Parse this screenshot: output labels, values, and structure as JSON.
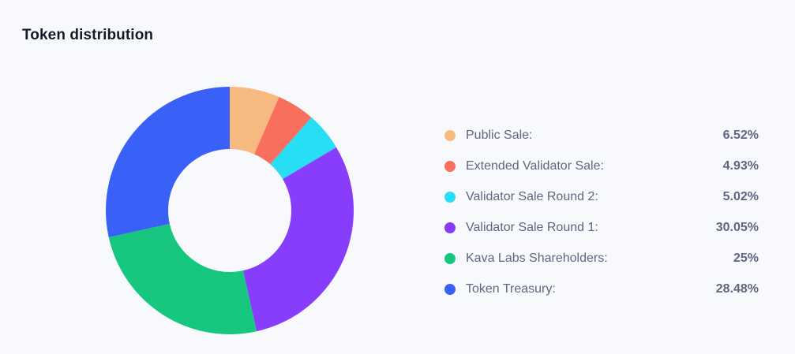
{
  "page": {
    "title": "Token distribution"
  },
  "chart_data": {
    "type": "pie",
    "title": "Token distribution",
    "series": [
      {
        "name": "Public Sale",
        "label": "Public Sale:",
        "value": 6.52,
        "display": "6.52%",
        "color": "#f6ba80"
      },
      {
        "name": "Extended Validator Sale",
        "label": "Extended Validator Sale:",
        "value": 4.93,
        "display": "4.93%",
        "color": "#f96f5d"
      },
      {
        "name": "Validator Sale Round 2",
        "label": "Validator Sale Round 2:",
        "value": 5.02,
        "display": "5.02%",
        "color": "#27def4"
      },
      {
        "name": "Validator Sale Round 1",
        "label": "Validator Sale Round 1:",
        "value": 30.05,
        "display": "30.05%",
        "color": "#883dfd"
      },
      {
        "name": "Kava Labs Shareholders",
        "label": "Kava Labs Shareholders:",
        "value": 25,
        "display": "25%",
        "color": "#17c67f"
      },
      {
        "name": "Token Treasury",
        "label": "Token Treasury:",
        "value": 28.48,
        "display": "28.48%",
        "color": "#3a61f7"
      }
    ]
  }
}
